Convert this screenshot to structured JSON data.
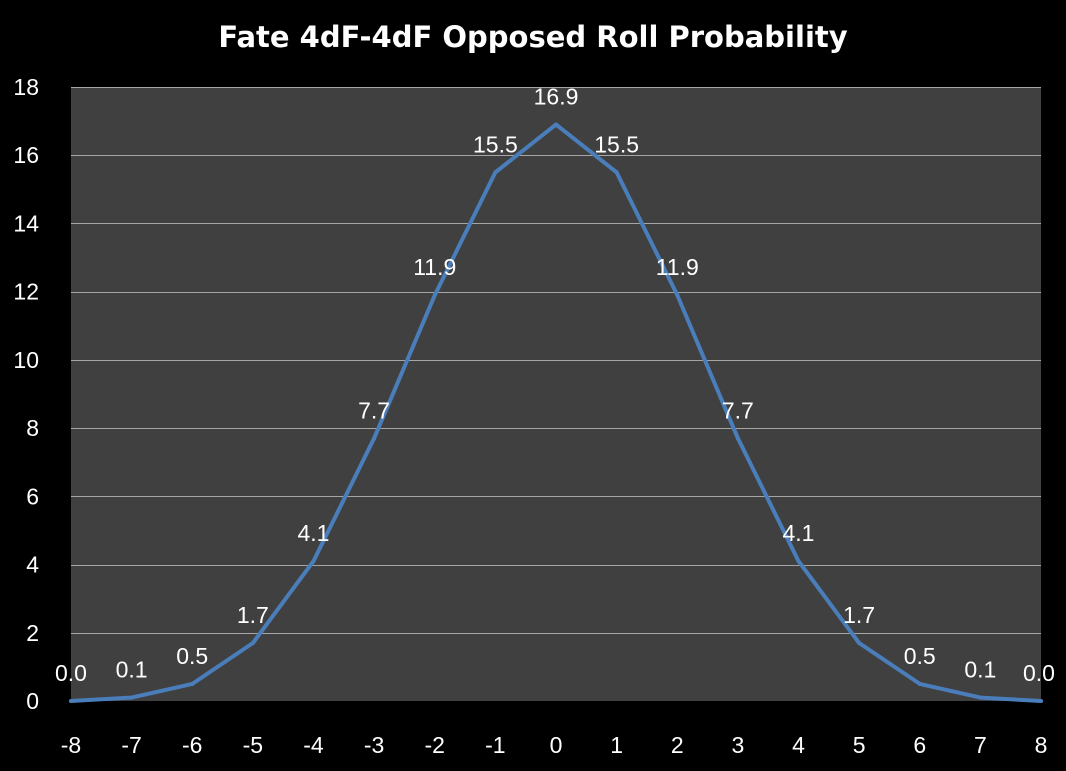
{
  "chart_data": {
    "type": "line",
    "title": "Fate 4dF-4dF Opposed Roll Probability",
    "xlabel": "",
    "ylabel": "",
    "x": [
      -8,
      -7,
      -6,
      -5,
      -4,
      -3,
      -2,
      -1,
      0,
      1,
      2,
      3,
      4,
      5,
      6,
      7,
      8
    ],
    "x_tick_labels": [
      "-8",
      "-7",
      "-6",
      "-5",
      "-4",
      "-3",
      "-2",
      "-1",
      "0",
      "1",
      "2",
      "3",
      "4",
      "5",
      "6",
      "7",
      "8"
    ],
    "values": [
      0.0,
      0.1,
      0.5,
      1.7,
      4.1,
      7.7,
      11.9,
      15.5,
      16.9,
      15.5,
      11.9,
      7.7,
      4.1,
      1.7,
      0.5,
      0.1,
      0.0
    ],
    "data_labels": [
      "0.0",
      "0.1",
      "0.5",
      "1.7",
      "4.1",
      "7.7",
      "11.9",
      "15.5",
      "16.9",
      "15.5",
      "11.9",
      "7.7",
      "4.1",
      "1.7",
      "0.5",
      "0.1",
      "0.0"
    ],
    "ylim": [
      0,
      18
    ],
    "y_ticks": [
      0,
      2,
      4,
      6,
      8,
      10,
      12,
      14,
      16,
      18
    ],
    "y_tick_labels": [
      "0",
      "2",
      "4",
      "6",
      "8",
      "10",
      "12",
      "14",
      "16",
      "18"
    ],
    "xlim": [
      -8,
      8
    ],
    "grid": "horizontal",
    "legend": "none",
    "colors": {
      "background": "#000000",
      "plot_area": "#404040",
      "gridline": "#a6a6a6",
      "line": "#4a7ebb",
      "text": "#ffffff"
    }
  }
}
